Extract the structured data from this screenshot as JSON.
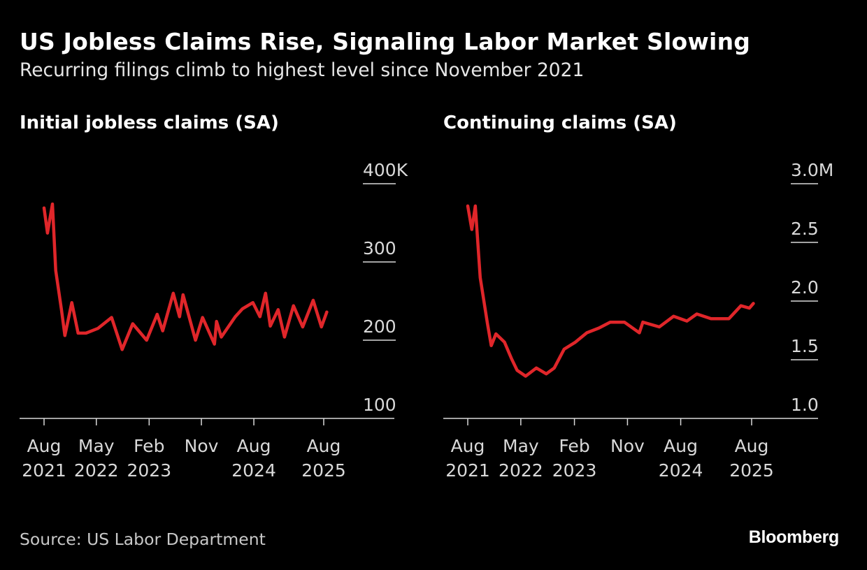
{
  "title": "US Jobless Claims Rise, Signaling Labor Market Slowing",
  "subtitle": "Recurring filings climb to highest level since November 2021",
  "source": "Source: US Labor Department",
  "logo": "Bloomberg",
  "colors": {
    "line": "#e0262a",
    "background": "#000000",
    "axis": "#d9d9d9"
  },
  "chart_data": [
    {
      "type": "line",
      "title": "Initial jobless claims (SA)",
      "ylim": [
        100,
        400
      ],
      "yticks": [
        {
          "value": 400,
          "label": "400K"
        },
        {
          "value": 300,
          "label": "300"
        },
        {
          "value": 200,
          "label": "200"
        },
        {
          "value": 100,
          "label": "100"
        }
      ],
      "xticks": [
        {
          "date": "2021-08-01",
          "line1": "Aug",
          "line2": "2021"
        },
        {
          "date": "2022-05-01",
          "line1": "May",
          "line2": "2022"
        },
        {
          "date": "2023-02-01",
          "line1": "Feb",
          "line2": "2023"
        },
        {
          "date": "2023-11-01",
          "line1": "Nov",
          "line2": ""
        },
        {
          "date": "2024-08-01",
          "line1": "Aug",
          "line2": "2024"
        },
        {
          "date": "2025-08-01",
          "line1": "Aug",
          "line2": "2025"
        }
      ],
      "grid": false,
      "x": [
        "2021-08-01",
        "2021-08-19",
        "2021-09-14",
        "2021-10-01",
        "2021-10-31",
        "2021-11-18",
        "2021-12-24",
        "2022-01-26",
        "2022-03-08",
        "2022-05-09",
        "2022-07-20",
        "2022-09-13",
        "2022-11-07",
        "2023-01-19",
        "2023-03-15",
        "2023-04-13",
        "2023-06-07",
        "2023-07-10",
        "2023-07-28",
        "2023-10-01",
        "2023-11-07",
        "2024-01-08",
        "2024-01-19",
        "2024-02-13",
        "2024-04-26",
        "2024-06-02",
        "2024-07-27",
        "2024-09-02",
        "2024-10-01",
        "2024-10-26",
        "2024-12-06",
        "2025-01-08",
        "2025-02-24",
        "2025-04-13",
        "2025-06-07",
        "2025-07-20",
        "2025-08-17"
      ],
      "values": [
        369,
        337,
        374,
        289,
        239,
        206,
        248,
        209,
        209,
        215,
        229,
        188,
        221,
        200,
        233,
        212,
        260,
        230,
        258,
        200,
        229,
        195,
        224,
        204,
        230,
        240,
        248,
        230,
        260,
        218,
        239,
        204,
        244,
        217,
        251,
        217,
        236
      ]
    },
    {
      "type": "line",
      "title": "Continuing claims (SA)",
      "ylim": [
        1.0,
        3.0
      ],
      "yticks": [
        {
          "value": 3.0,
          "label": "3.0M"
        },
        {
          "value": 2.5,
          "label": "2.5"
        },
        {
          "value": 2.0,
          "label": "2.0"
        },
        {
          "value": 1.5,
          "label": "1.5"
        },
        {
          "value": 1.0,
          "label": "1.0"
        }
      ],
      "xticks": [
        {
          "date": "2021-08-01",
          "line1": "Aug",
          "line2": "2021"
        },
        {
          "date": "2022-05-01",
          "line1": "May",
          "line2": "2022"
        },
        {
          "date": "2023-02-01",
          "line1": "Feb",
          "line2": "2023"
        },
        {
          "date": "2023-11-01",
          "line1": "Nov",
          "line2": ""
        },
        {
          "date": "2024-08-01",
          "line1": "Aug",
          "line2": "2024"
        },
        {
          "date": "2025-08-01",
          "line1": "Aug",
          "line2": "2025"
        }
      ],
      "grid": false,
      "x": [
        "2021-08-01",
        "2021-08-22",
        "2021-09-09",
        "2021-10-04",
        "2021-11-10",
        "2021-11-30",
        "2021-12-24",
        "2022-02-06",
        "2022-03-14",
        "2022-04-12",
        "2022-05-26",
        "2022-07-20",
        "2022-09-09",
        "2022-10-20",
        "2022-12-10",
        "2023-02-06",
        "2023-04-06",
        "2023-06-07",
        "2023-08-04",
        "2023-10-16",
        "2024-01-01",
        "2024-01-19",
        "2024-04-13",
        "2024-06-25",
        "2024-09-02",
        "2024-10-23",
        "2025-01-04",
        "2025-04-06",
        "2025-06-07",
        "2025-07-20",
        "2025-08-10"
      ],
      "values": [
        2.81,
        2.61,
        2.81,
        2.2,
        1.81,
        1.62,
        1.72,
        1.65,
        1.51,
        1.41,
        1.36,
        1.43,
        1.38,
        1.43,
        1.59,
        1.65,
        1.73,
        1.77,
        1.82,
        1.82,
        1.73,
        1.82,
        1.78,
        1.87,
        1.83,
        1.89,
        1.85,
        1.85,
        1.96,
        1.94,
        1.98
      ]
    }
  ]
}
